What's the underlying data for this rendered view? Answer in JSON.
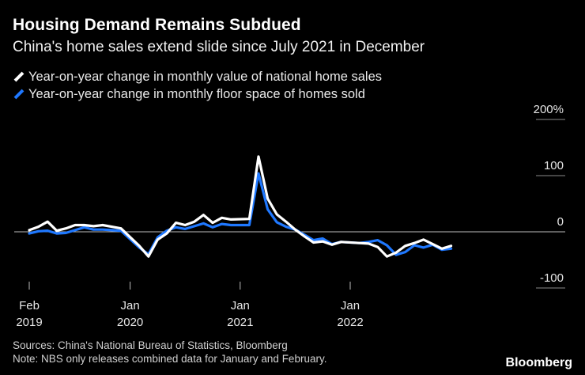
{
  "header": {
    "title": "Housing Demand Remains Subdued",
    "subtitle": "China's home sales extend slide since July 2021 in December"
  },
  "footer": {
    "sources": "Sources: China's National Bureau of Statistics, Bloomberg",
    "note": "Note: NBS only releases combined data for January and February.",
    "brand": "Bloomberg"
  },
  "chart_data": {
    "type": "line",
    "title": "Housing Demand Remains Subdued",
    "subtitle": "China's home sales extend slide since July 2021 in December",
    "x": [
      "2019-02",
      "2019-03",
      "2019-04",
      "2019-05",
      "2019-06",
      "2019-07",
      "2019-08",
      "2019-09",
      "2019-10",
      "2019-11",
      "2019-12",
      "2020-02",
      "2020-03",
      "2020-04",
      "2020-05",
      "2020-06",
      "2020-07",
      "2020-08",
      "2020-09",
      "2020-10",
      "2020-11",
      "2020-12",
      "2021-02",
      "2021-03",
      "2021-04",
      "2021-05",
      "2021-06",
      "2021-07",
      "2021-08",
      "2021-09",
      "2021-10",
      "2021-11",
      "2021-12",
      "2022-02",
      "2022-03",
      "2022-04",
      "2022-05",
      "2022-06",
      "2022-07",
      "2022-08",
      "2022-09",
      "2022-10",
      "2022-11",
      "2022-12"
    ],
    "series": [
      {
        "name": "Year-on-year change in monthly value of national home sales",
        "color": "#ffffff",
        "values": [
          3,
          9,
          18,
          2,
          6,
          12,
          12,
          10,
          12,
          9,
          6,
          -25,
          -44,
          -14,
          -3,
          16,
          12,
          18,
          30,
          16,
          25,
          22,
          23,
          134,
          59,
          31,
          18,
          4,
          -8,
          -19,
          -17,
          -23,
          -18,
          -20,
          -21,
          -27,
          -44,
          -37,
          -25,
          -20,
          -14,
          -22,
          -30,
          -25
        ]
      },
      {
        "name": "Year-on-year change in monthly floor space of homes sold",
        "color": "#1f78ff",
        "values": [
          -3,
          1,
          2,
          -3,
          -2,
          3,
          8,
          4,
          4,
          3,
          2,
          -28,
          -40,
          -10,
          2,
          8,
          5,
          10,
          15,
          8,
          14,
          12,
          12,
          104,
          40,
          17,
          9,
          4,
          -5,
          -15,
          -12,
          -22,
          -18,
          -20,
          -18,
          -15,
          -24,
          -41,
          -36,
          -24,
          -28,
          -23,
          -32,
          -30
        ]
      }
    ],
    "xtick_labels": [
      {
        "month": "Feb",
        "year": "2019"
      },
      {
        "month": "Jan",
        "year": "2020"
      },
      {
        "month": "Jan",
        "year": "2021"
      },
      {
        "month": "Jan",
        "year": "2022"
      }
    ],
    "y_ticks": [
      {
        "value": 200,
        "label": "200%"
      },
      {
        "value": 100,
        "label": "100"
      },
      {
        "value": 0,
        "label": "0"
      },
      {
        "value": -100,
        "label": "-100"
      }
    ],
    "ylim": [
      -100,
      200
    ],
    "xlabel": "",
    "ylabel": "",
    "grid": false,
    "legend_position": "top-left"
  }
}
